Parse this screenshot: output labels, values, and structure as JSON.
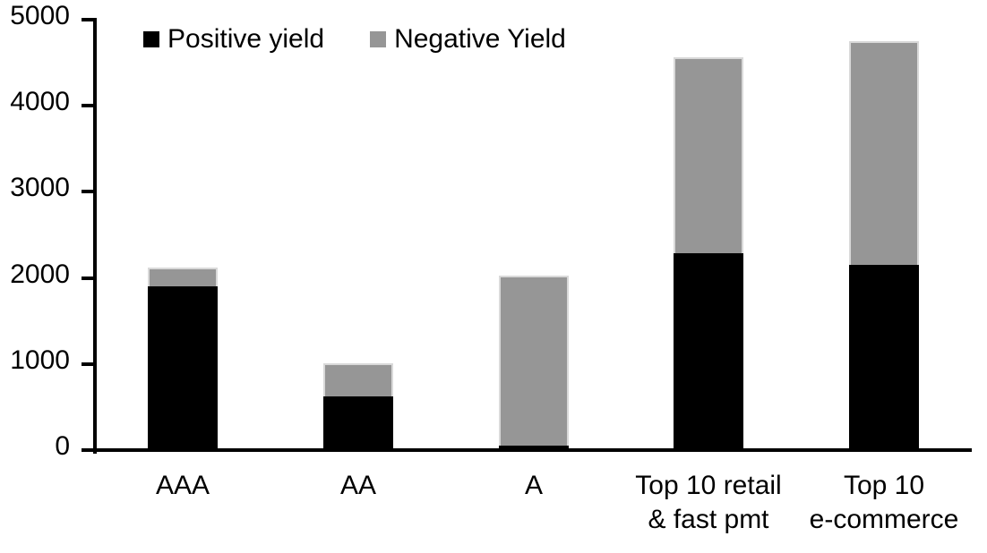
{
  "chart_data": {
    "type": "bar",
    "stacked": true,
    "title": "",
    "xlabel": "",
    "ylabel": "",
    "categories": [
      "AAA",
      "AA",
      "A",
      "Top 10 retail\n& fast pmt",
      "Top 10\ne-commerce"
    ],
    "series": [
      {
        "name": "Positive yield",
        "color": "#000000",
        "values": [
          1900,
          620,
          50,
          2290,
          2150
        ]
      },
      {
        "name": "Negative Yield",
        "color": "#969696",
        "values": [
          220,
          390,
          1980,
          2270,
          2600
        ]
      }
    ],
    "stack_totals": [
      2120,
      1010,
      2030,
      4560,
      4750
    ],
    "ylim": [
      0,
      5000
    ],
    "yticks": [
      0,
      1000,
      2000,
      3000,
      4000,
      5000
    ],
    "legend_position": "top",
    "grid": false,
    "colors": {
      "positive": "#000000",
      "negative": "#969696",
      "negative_border": "#d9d9d9",
      "axis": "#000000",
      "background": "#ffffff"
    }
  }
}
